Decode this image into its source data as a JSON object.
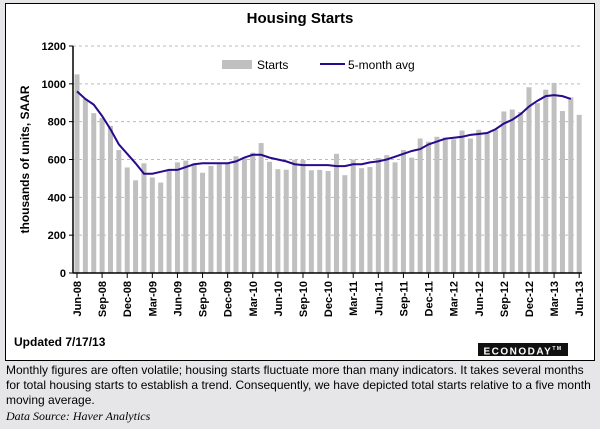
{
  "chart_data": {
    "type": "bar+line",
    "title": "Housing Starts",
    "ylabel": "thousands of units, SAAR",
    "ylim": [
      0,
      1200
    ],
    "yticks": [
      0,
      200,
      400,
      600,
      800,
      1000,
      1200
    ],
    "grid": "horizontal dashed",
    "legend": "top",
    "xtick_labels": [
      "Jun-08",
      "Sep-08",
      "Dec-08",
      "Mar-09",
      "Jun-09",
      "Sep-09",
      "Dec-09",
      "Mar-10",
      "Jun-10",
      "Sep-10",
      "Dec-10",
      "Mar-11",
      "Jun-11",
      "Sep-11",
      "Dec-11",
      "Mar-12",
      "Jun-12",
      "Sep-12",
      "Dec-12",
      "Mar-13",
      "Jun-13"
    ],
    "series": [
      {
        "name": "Starts",
        "type": "bar",
        "color": "#c0c0c0",
        "values": [
          1050,
          920,
          845,
          820,
          778,
          650,
          558,
          490,
          580,
          505,
          478,
          540,
          585,
          594,
          580,
          530,
          566,
          575,
          580,
          617,
          605,
          636,
          687,
          588,
          549,
          546,
          599,
          597,
          543,
          545,
          539,
          630,
          517,
          600,
          554,
          560,
          608,
          623,
          585,
          650,
          610,
          711,
          694,
          720,
          716,
          707,
          753,
          711,
          757,
          741,
          758,
          854,
          864,
          851,
          982,
          898,
          969,
          1005,
          856,
          928,
          836
        ]
      },
      {
        "name": "5-month avg",
        "type": "line",
        "color": "#2a0a8c",
        "values": [
          960,
          920,
          890,
          830,
          760,
          680,
          630,
          580,
          525,
          525,
          535,
          545,
          545,
          560,
          575,
          580,
          580,
          580,
          580,
          590,
          610,
          625,
          625,
          610,
          600,
          590,
          575,
          570,
          570,
          570,
          570,
          565,
          565,
          575,
          575,
          585,
          590,
          600,
          615,
          630,
          645,
          655,
          680,
          695,
          710,
          715,
          720,
          730,
          735,
          740,
          760,
          790,
          810,
          840,
          880,
          910,
          935,
          940,
          935,
          920,
          null
        ]
      }
    ]
  },
  "updated": "Updated 7/17/13",
  "logo": "ECONODAY",
  "note": "Monthly figures are often volatile; housing starts fluctuate more than many indicators. It takes several months for total housing starts to establish a trend. Consequently, we have depicted total starts relative to a five month moving average.",
  "source": "Data Source: Haver Analytics"
}
